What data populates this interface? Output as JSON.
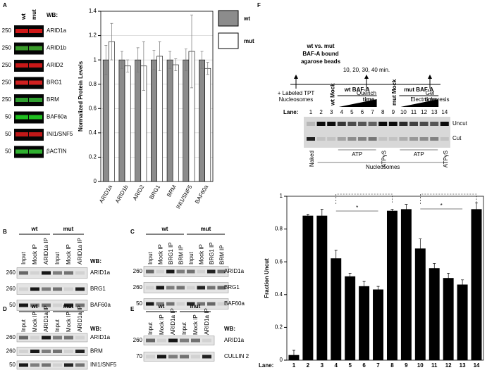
{
  "panel_labels": [
    "A",
    "B",
    "C",
    "D",
    "E",
    "F"
  ],
  "panel_a": {
    "genotypes": [
      "wt",
      "mut"
    ],
    "wb": "WB:",
    "blots": [
      {
        "mw": "250",
        "label": "ARID1a"
      },
      {
        "mw": "250",
        "label": "ARID1b"
      },
      {
        "mw": "250",
        "label": "ARID2"
      },
      {
        "mw": "250",
        "label": "BRG1"
      },
      {
        "mw": "250",
        "label": "BRM"
      },
      {
        "mw": "50",
        "label": "BAF60a"
      },
      {
        "mw": "50",
        "label": "INI1/SNF5"
      },
      {
        "mw": "50",
        "label": "βACTIN"
      }
    ]
  },
  "blots": [
    {
      "groups": [
        "wt",
        "mut"
      ],
      "lanes": [
        "Input",
        "Mock IP",
        "ARID1a IP",
        "Input",
        "Mock IP",
        "ARID1a IP"
      ],
      "wb": "WB:",
      "rows": [
        {
          "mw": "260",
          "label": "ARID1a"
        },
        {
          "mw": "260",
          "label": "BRG1"
        },
        {
          "mw": "50",
          "label": "BAF60a"
        }
      ]
    },
    {
      "groups": [
        "wt",
        "mut"
      ],
      "lanes": [
        "Input",
        "Mock IP",
        "BRG1 IP",
        "BRM IP",
        "Input",
        "Mock IP",
        "BRG1 IP",
        "BRM IP"
      ],
      "rows": [
        {
          "mw": "260",
          "label": "ARID1a"
        },
        {
          "mw": "260",
          "label": "BRG1"
        },
        {
          "mw": "50",
          "label": "BAF60a"
        }
      ]
    },
    {
      "groups": [
        "wt",
        "mut"
      ],
      "lanes": [
        "Input",
        "Mock IP",
        "ARID1a IP",
        "Input",
        "Mock IP",
        "ARID1a IP"
      ],
      "wb": "WB:",
      "rows": [
        {
          "mw": "260",
          "label": "ARID1a"
        },
        {
          "mw": "260",
          "label": "BRM"
        },
        {
          "mw": "50",
          "label": "INI1/SNF5"
        }
      ]
    },
    {
      "groups": [
        "wt",
        "mut"
      ],
      "lanes": [
        "Input",
        "Mock IP",
        "ARID1a IP",
        "Input",
        "Mock IP",
        "ARID1a IP"
      ],
      "wb": "WB:",
      "rows": [
        {
          "mw": "260",
          "label": "ARID1a"
        },
        {
          "mw": "70",
          "label": "CULLIN 2"
        }
      ]
    }
  ],
  "panel_f": {
    "scheme": [
      "wt vs. mut",
      "BAF-A bound",
      "agarose beads"
    ],
    "times": "10, 20, 30, 40 min.",
    "steps": [
      [
        "+ Labeled TPT",
        "Nucleosomes"
      ],
      [
        "Quench"
      ],
      [
        "Gel",
        "Electrophoresis"
      ]
    ],
    "gel": {
      "groups": [
        "wt BAF-A",
        "mut BAF-A"
      ],
      "time": [
        "time",
        "time"
      ],
      "lane_title": "Lane:",
      "lanes": [
        "1",
        "2",
        "3",
        "4",
        "5",
        "6",
        "7",
        "8",
        "9",
        "10",
        "11",
        "12",
        "13",
        "14"
      ],
      "mocks": [
        "wt Mock",
        "mut Mock"
      ],
      "bands": [
        "Uncut",
        "Cut"
      ],
      "naked": "Naked",
      "treatments": [
        "ATP",
        "ATPγS",
        "ATP",
        "ATPγS"
      ],
      "nucleosomes": "Nucleosomes"
    },
    "asterisks": [
      "*",
      "*"
    ]
  },
  "chart_data": [
    {
      "type": "bar",
      "y_label": "Normalized Protein Levels",
      "categories": [
        "ARID1a",
        "ARID1b",
        "ARID2",
        "BRG1",
        "BRM",
        "INI1/SNF5",
        "BAF60a"
      ],
      "series": [
        {
          "name": "wt",
          "color": "#8c8c8c",
          "values": [
            1,
            1,
            1,
            1,
            1,
            1,
            1
          ],
          "errors": [
            0.12,
            0.07,
            0.1,
            0.08,
            0.07,
            0.09,
            0.07
          ]
        },
        {
          "name": "mut",
          "color": "#ffffff",
          "values": [
            1.15,
            0.95,
            0.95,
            1.03,
            0.96,
            1.07,
            0.93
          ],
          "errors": [
            0.15,
            0.05,
            0.2,
            0.12,
            0.05,
            0.3,
            0.05
          ]
        }
      ],
      "ylim": [
        0,
        1.4
      ],
      "yticks": [
        0,
        0.2,
        0.4,
        0.6,
        0.8,
        1,
        1.2,
        1.4
      ],
      "grid": true
    },
    {
      "type": "bar",
      "y_label": "Fraction Uncut",
      "x_label": "Lane:",
      "categories": [
        "1",
        "2",
        "3",
        "4",
        "5",
        "6",
        "7",
        "8",
        "9",
        "10",
        "11",
        "12",
        "13",
        "14"
      ],
      "series": [
        {
          "color": "#000000",
          "values": [
            0.03,
            0.88,
            0.88,
            0.62,
            0.51,
            0.45,
            0.43,
            0.91,
            0.92,
            0.68,
            0.56,
            0.5,
            0.46,
            0.92
          ],
          "errors": [
            0.03,
            0.01,
            0.04,
            0.05,
            0.02,
            0.03,
            0.02,
            0.01,
            0.03,
            0.06,
            0.03,
            0.03,
            0.03,
            0.04
          ]
        }
      ],
      "ylim": [
        0,
        1
      ],
      "yticks": [
        0,
        0.2,
        0.4,
        0.6,
        0.8,
        1
      ],
      "grid": false
    }
  ]
}
